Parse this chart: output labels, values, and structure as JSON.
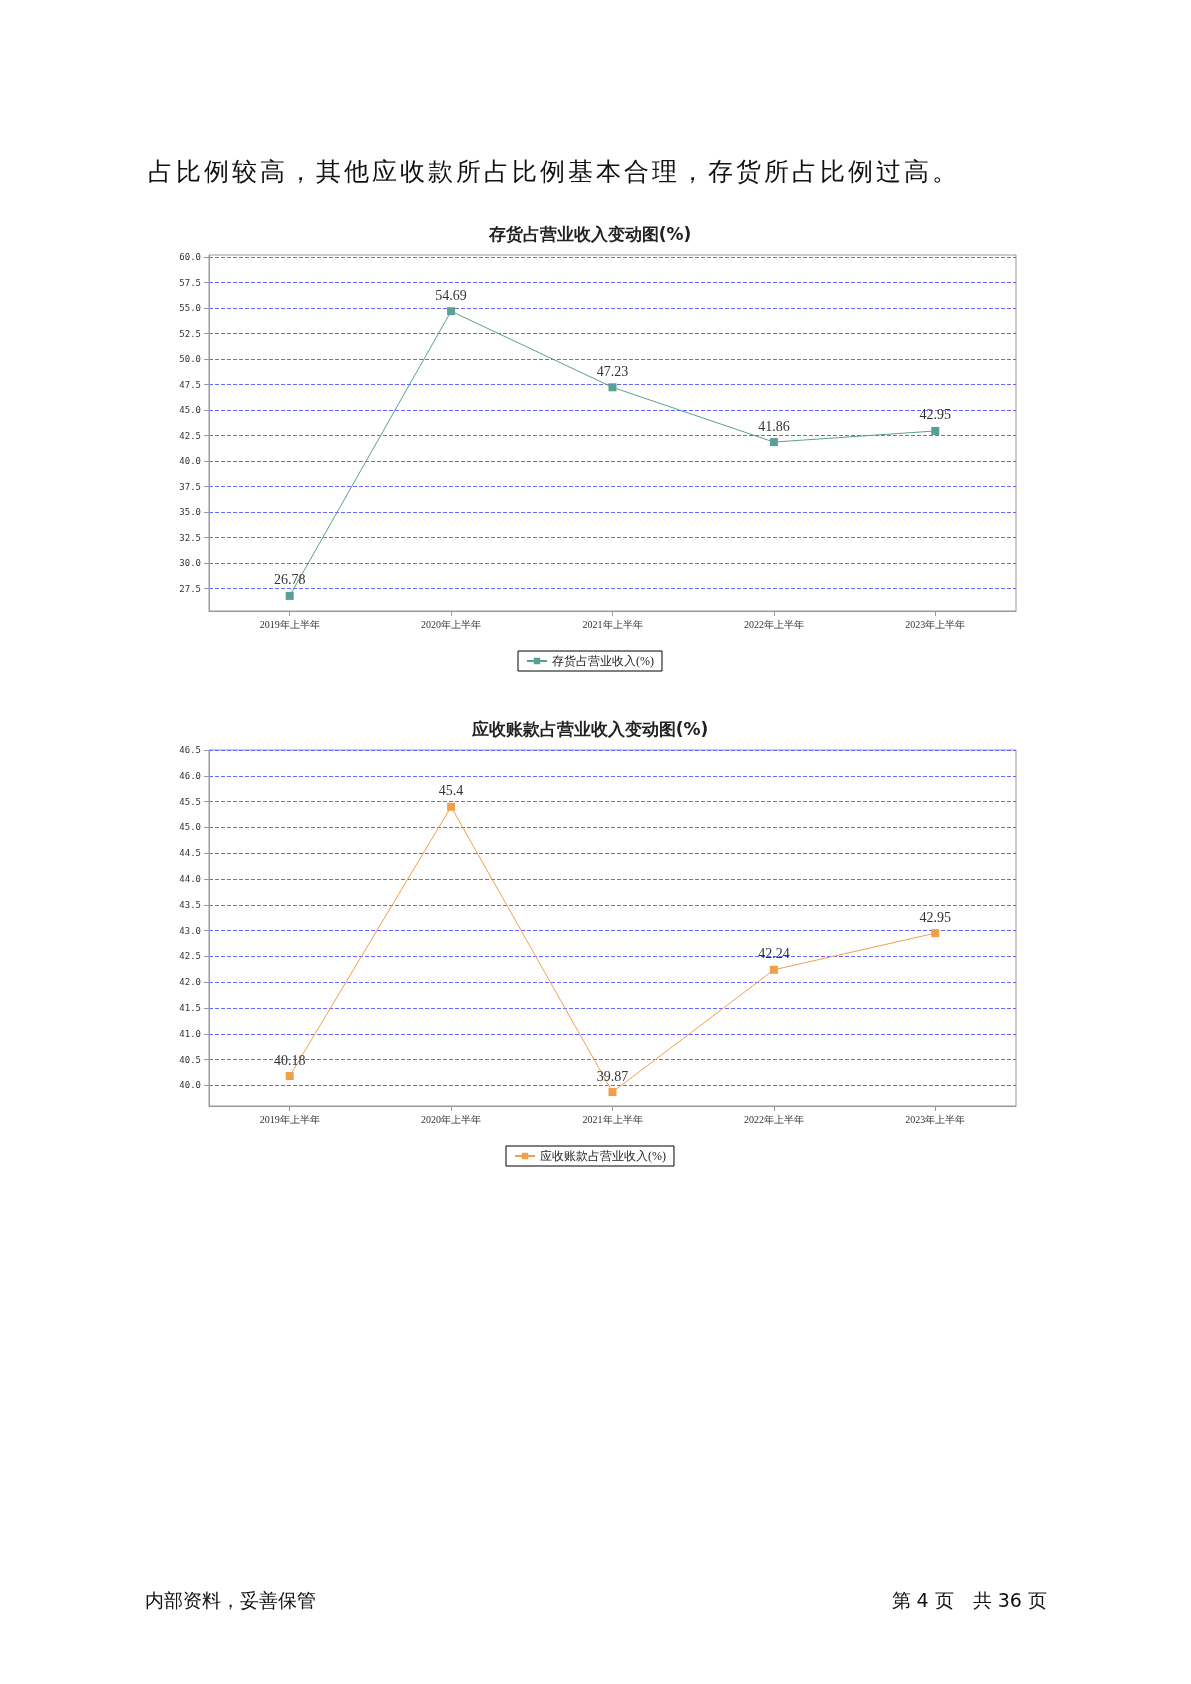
{
  "chart_data": [
    {
      "type": "line",
      "title": "存货占营业收入变动图(%)",
      "annotations": [
        "占比例较高，其他应收款所占比例基本合理，存货所占比例过高。"
      ],
      "categories": [
        "2019年上半年",
        "2020年上半年",
        "2021年上半年",
        "2022年上半年",
        "2023年上半年"
      ],
      "series": [
        {
          "name": "存货占营业收入(%)",
          "color": "#5a9e96",
          "values": [
            26.78,
            54.69,
            47.23,
            41.86,
            42.95
          ]
        }
      ],
      "ylim": [
        25.3,
        60.2
      ],
      "yticks": [
        {
          "value": 27.5,
          "label": "27.5"
        },
        {
          "value": 30,
          "label": "30.0"
        },
        {
          "value": 32.5,
          "label": "32.5"
        },
        {
          "value": 35,
          "label": "35.0"
        },
        {
          "value": 37.5,
          "label": "37.5"
        },
        {
          "value": 40,
          "label": "40.0"
        },
        {
          "value": 42.5,
          "label": "42.5"
        },
        {
          "value": 45,
          "label": "45.0"
        },
        {
          "value": 47.5,
          "label": "47.5"
        },
        {
          "value": 50,
          "label": "50.0"
        },
        {
          "value": 52.5,
          "label": "52.5"
        },
        {
          "value": 55,
          "label": "55.0"
        },
        {
          "value": 57.5,
          "label": "57.5"
        },
        {
          "value": 60,
          "label": "60.0"
        }
      ],
      "grid": "y",
      "legend": "bottom",
      "marker": "square",
      "line_style": "solid",
      "data_labels": true
    },
    {
      "type": "line",
      "title": "应收账款占营业收入变动图(%)",
      "annotations": [
        "内部资料，妥善保管",
        "第 4 页　共 36 页"
      ],
      "categories": [
        "2019年上半年",
        "2020年上半年",
        "2021年上半年",
        "2022年上半年",
        "2023年上半年"
      ],
      "series": [
        {
          "name": "应收账款占营业收入(%)",
          "color": "#f0a04b",
          "values": [
            40.18,
            45.4,
            39.87,
            42.24,
            42.95
          ]
        }
      ],
      "ylim": [
        39.6,
        46.5
      ],
      "yticks": [
        {
          "value": 40,
          "label": "40.0"
        },
        {
          "value": 40.5,
          "label": "40.5"
        },
        {
          "value": 41,
          "label": "41.0"
        },
        {
          "value": 41.5,
          "label": "41.5"
        },
        {
          "value": 42,
          "label": "42.0"
        },
        {
          "value": 42.5,
          "label": "42.5"
        },
        {
          "value": 43,
          "label": "43.0"
        },
        {
          "value": 43.5,
          "label": "43.5"
        },
        {
          "value": 44,
          "label": "44.0"
        },
        {
          "value": 44.5,
          "label": "44.5"
        },
        {
          "value": 45,
          "label": "45.0"
        },
        {
          "value": 45.5,
          "label": "45.5"
        },
        {
          "value": 46,
          "label": "46.0"
        },
        {
          "value": 46.5,
          "label": "46.5"
        }
      ],
      "grid": "y",
      "legend": "bottom",
      "marker": "square",
      "line_style": "solid",
      "data_labels": true
    }
  ]
}
